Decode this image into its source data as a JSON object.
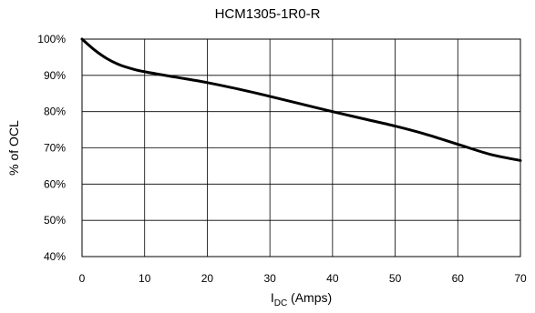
{
  "chart_data": {
    "type": "line",
    "title": "HCM1305-1R0-R",
    "xlabel": {
      "main": "I",
      "sub": "DC",
      "rest": " (Amps)"
    },
    "ylabel": "% of OCL",
    "xlim": [
      0,
      70
    ],
    "ylim": [
      40,
      100
    ],
    "x_ticks": [
      0,
      10,
      20,
      30,
      40,
      50,
      60,
      70
    ],
    "x_tick_labels": [
      "0",
      "10",
      "20",
      "30",
      "40",
      "50",
      "60",
      "70"
    ],
    "y_ticks": [
      40,
      50,
      60,
      70,
      80,
      90,
      100
    ],
    "y_tick_labels": [
      "40%",
      "50%",
      "60%",
      "70%",
      "80%",
      "90%",
      "100%"
    ],
    "grid": true,
    "series": [
      {
        "x": [
          0,
          2,
          4,
          6,
          8,
          10,
          15,
          20,
          25,
          30,
          35,
          40,
          45,
          50,
          55,
          60,
          65,
          70
        ],
        "values": [
          100,
          97,
          94.6,
          92.9,
          91.8,
          91,
          89.5,
          88,
          86.2,
          84.2,
          82.1,
          80,
          78,
          76,
          73.7,
          71,
          68.3,
          66.5
        ]
      }
    ],
    "line_color": "#000000",
    "grid_color": "#000000"
  }
}
